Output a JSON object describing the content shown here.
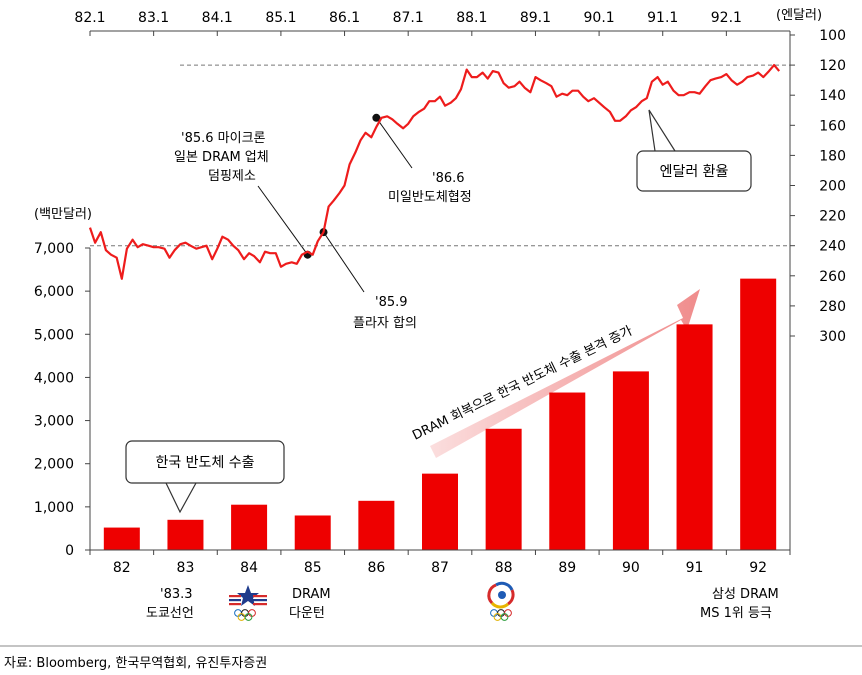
{
  "chart_data": {
    "type": "bar",
    "left_unit": "(백만달러)",
    "right_unit": "(엔달러)",
    "categories": [
      "82",
      "83",
      "84",
      "85",
      "86",
      "87",
      "88",
      "89",
      "90",
      "91",
      "92"
    ],
    "series": [
      {
        "name": "한국 반도체 수출",
        "values": [
          520,
          700,
          1050,
          800,
          1140,
          1770,
          2810,
          3650,
          4140,
          5230,
          6290
        ]
      }
    ],
    "ylim_left": [
      0,
      7000
    ],
    "yticks_left": [
      "0",
      "1,000",
      "2,000",
      "3,000",
      "4,000",
      "5,000",
      "6,000",
      "7,000"
    ],
    "ylim_right": [
      100,
      300
    ],
    "yticks_right": [
      "100",
      "120",
      "140",
      "160",
      "180",
      "200",
      "220",
      "240",
      "260",
      "280",
      "300"
    ],
    "top_axis_labels": [
      "82.1",
      "83.1",
      "84.1",
      "85.1",
      "86.1",
      "87.1",
      "88.1",
      "89.1",
      "90.1",
      "91.1",
      "92.1"
    ],
    "fx_series": {
      "name": "엔달러 환율",
      "x": [
        1982.0,
        1982.08,
        1982.17,
        1982.25,
        1982.33,
        1982.42,
        1982.5,
        1982.58,
        1982.67,
        1982.75,
        1982.83,
        1982.92,
        1983.0,
        1983.08,
        1983.17,
        1983.25,
        1983.33,
        1983.42,
        1983.5,
        1983.58,
        1983.67,
        1983.75,
        1983.83,
        1983.92,
        1984.0,
        1984.08,
        1984.17,
        1984.25,
        1984.33,
        1984.42,
        1984.5,
        1984.58,
        1984.67,
        1984.75,
        1984.83,
        1984.92,
        1985.0,
        1985.08,
        1985.17,
        1985.25,
        1985.33,
        1985.42,
        1985.5,
        1985.58,
        1985.67,
        1985.75,
        1985.83,
        1985.92,
        1986.0,
        1986.08,
        1986.17,
        1986.25,
        1986.33,
        1986.42,
        1986.5,
        1986.58,
        1986.67,
        1986.75,
        1986.83,
        1986.92,
        1987.0,
        1987.08,
        1987.17,
        1987.25,
        1987.33,
        1987.42,
        1987.5,
        1987.58,
        1987.67,
        1987.75,
        1987.83,
        1987.92,
        1988.0,
        1988.08,
        1988.17,
        1988.25,
        1988.33,
        1988.42,
        1988.5,
        1988.58,
        1988.67,
        1988.75,
        1988.83,
        1988.92,
        1989.0,
        1989.08,
        1989.17,
        1989.25,
        1989.33,
        1989.42,
        1989.5,
        1989.58,
        1989.67,
        1989.75,
        1989.83,
        1989.92,
        1990.0,
        1990.08,
        1990.17,
        1990.25,
        1990.33,
        1990.42,
        1990.5,
        1990.58,
        1990.67,
        1990.75,
        1990.83,
        1990.92,
        1991.0,
        1991.08,
        1991.17,
        1991.25,
        1991.33,
        1991.42,
        1991.5,
        1991.58,
        1991.67,
        1991.75,
        1991.83,
        1991.92,
        1992.0,
        1992.08,
        1992.17,
        1992.25,
        1992.33,
        1992.42,
        1992.5,
        1992.58,
        1992.67,
        1992.75,
        1992.83
      ],
      "y": [
        228,
        238,
        231,
        243,
        246,
        248,
        262,
        242,
        236,
        241,
        239,
        240,
        241,
        241,
        242,
        248,
        243,
        239,
        238,
        240,
        242,
        241,
        240,
        249,
        242,
        234,
        236,
        240,
        243,
        249,
        245,
        247,
        251,
        244,
        245,
        245,
        254,
        252,
        251,
        252,
        246,
        244,
        246,
        237,
        231,
        214,
        210,
        205,
        200,
        186,
        178,
        170,
        165,
        168,
        161,
        155,
        154,
        156,
        159,
        162,
        159,
        154,
        151,
        149,
        144,
        144,
        141,
        147,
        145,
        142,
        136,
        123,
        128,
        128,
        125,
        129,
        124,
        125,
        132,
        135,
        134,
        131,
        135,
        138,
        128,
        130,
        132,
        134,
        141,
        139,
        140,
        137,
        137,
        141,
        144,
        142,
        145,
        148,
        151,
        157,
        157,
        154,
        150,
        148,
        144,
        142,
        131,
        128,
        133,
        131,
        137,
        140,
        140,
        138,
        138,
        139,
        134,
        130,
        129,
        128,
        126,
        130,
        133,
        131,
        128,
        127,
        125,
        128,
        124,
        120,
        124
      ]
    },
    "reference_lines_right": [
      120,
      240
    ],
    "annotations": {
      "plaza": [
        "'85.9",
        "플라자 합의"
      ],
      "japan_dumping": [
        "'85.6 마이크론",
        "일본 DRAM 업체",
        "덤핑제소"
      ],
      "agreement": [
        "'86.6",
        "미일반도체협정"
      ],
      "fx_label": "엔달러 환율",
      "export_label": "한국 반도체 수출",
      "trend_label": "DRAM 회복으로 한국 반도체 수출 본격 증가",
      "tokyo": [
        "'83.3",
        "도쿄선언"
      ],
      "dram_down": [
        "DRAM",
        "다운턴"
      ],
      "samsung": [
        "삼성 DRAM",
        "MS 1위 등극"
      ]
    },
    "colors": {
      "bar": "#ee0000",
      "fx_line": "#ee1c1c",
      "arrow": "#f6b8b8"
    }
  },
  "footer": {
    "source": "자료: Bloomberg, 한국무역협회, 유진투자증권"
  }
}
